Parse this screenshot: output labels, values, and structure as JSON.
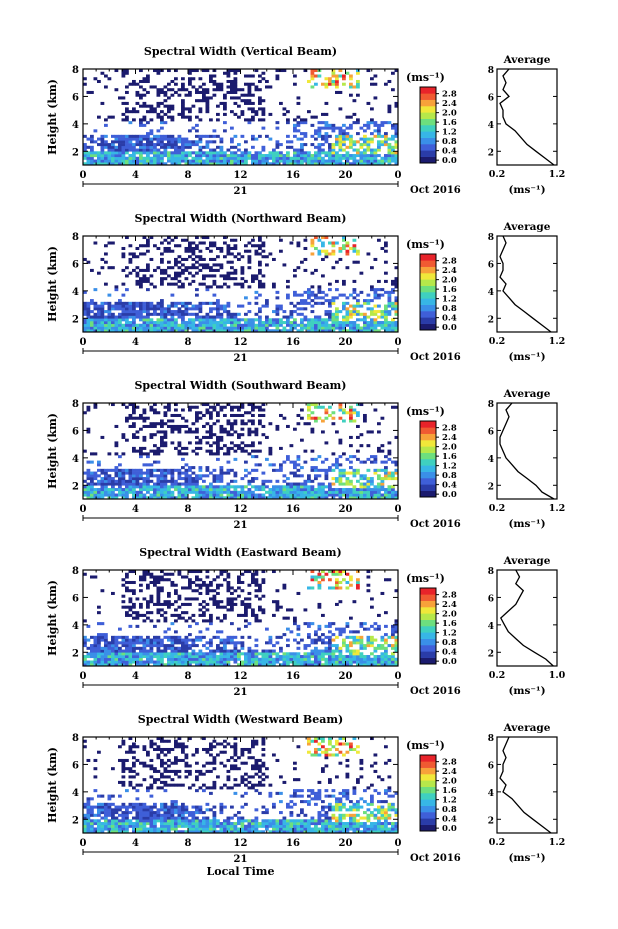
{
  "figure": {
    "x_axis_title": "Local Time",
    "date_label": "Oct 2016",
    "day_label": "21",
    "colorbar_unit": "(ms⁻¹)",
    "avg_title": "Average",
    "avg_unit": "(ms⁻¹)"
  },
  "colormap": [
    "#1b1b6e",
    "#2a3ca8",
    "#3f5fd8",
    "#3a8fe8",
    "#37b6e6",
    "#3fd0c0",
    "#6ddf7e",
    "#b6e84a",
    "#f0e83a",
    "#f7a23a",
    "#f05a32",
    "#e8232a"
  ],
  "chart_data": [
    {
      "type": "heatmap",
      "title": "Spectral Width (Vertical Beam)",
      "xlabel": "",
      "ylabel": "Height (km)",
      "xlim": [
        0,
        24
      ],
      "ylim": [
        1,
        8
      ],
      "x_ticks": [
        "0",
        "4",
        "8",
        "12",
        "16",
        "20",
        "0"
      ],
      "y_ticks": [
        "2",
        "4",
        "6",
        "8"
      ],
      "colorbar": {
        "label": "(ms⁻¹)",
        "ticks": [
          "0.0",
          "0.4",
          "0.8",
          "1.2",
          "1.6",
          "2.0",
          "2.4",
          "2.8"
        ],
        "range": [
          0,
          3
        ]
      },
      "average": {
        "xlim": [
          0.2,
          1.2
        ],
        "x_ticks": [
          "0.2",
          "1.2"
        ],
        "y": [
          1,
          1.5,
          2,
          2.5,
          3,
          3.5,
          4,
          4.5,
          5,
          5.5,
          6,
          6.5,
          7,
          7.5,
          8
        ],
        "x": [
          1.15,
          1.0,
          0.85,
          0.7,
          0.6,
          0.5,
          0.35,
          0.3,
          0.3,
          0.25,
          0.4,
          0.3,
          0.35,
          0.3,
          0.4
        ]
      }
    },
    {
      "type": "heatmap",
      "title": "Spectral Width (Northward Beam)",
      "xlabel": "",
      "ylabel": "Height (km)",
      "xlim": [
        0,
        24
      ],
      "ylim": [
        1,
        8
      ],
      "x_ticks": [
        "0",
        "4",
        "8",
        "12",
        "16",
        "20",
        "0"
      ],
      "y_ticks": [
        "2",
        "4",
        "6",
        "8"
      ],
      "colorbar": {
        "label": "(ms⁻¹)",
        "ticks": [
          "0.0",
          "0.4",
          "0.8",
          "1.2",
          "1.6",
          "2.0",
          "2.4",
          "2.8"
        ],
        "range": [
          0,
          3
        ]
      },
      "average": {
        "xlim": [
          0.2,
          1.2
        ],
        "x_ticks": [
          "0.2",
          "1.2"
        ],
        "y": [
          1,
          1.5,
          2,
          2.5,
          3,
          3.5,
          4,
          4.5,
          5,
          5.5,
          6,
          6.5,
          7,
          7.5,
          8
        ],
        "x": [
          1.1,
          0.95,
          0.8,
          0.65,
          0.5,
          0.4,
          0.3,
          0.35,
          0.25,
          0.3,
          0.3,
          0.25,
          0.3,
          0.35,
          0.3
        ]
      }
    },
    {
      "type": "heatmap",
      "title": "Spectral Width (Southward Beam)",
      "xlabel": "",
      "ylabel": "Height (km)",
      "xlim": [
        0,
        24
      ],
      "ylim": [
        1,
        8
      ],
      "x_ticks": [
        "0",
        "4",
        "8",
        "12",
        "16",
        "20",
        "0"
      ],
      "y_ticks": [
        "2",
        "4",
        "6",
        "8"
      ],
      "colorbar": {
        "label": "(ms⁻¹)",
        "ticks": [
          "0.0",
          "0.4",
          "0.8",
          "1.2",
          "1.6",
          "2.0",
          "2.4",
          "2.8"
        ],
        "range": [
          0,
          3
        ]
      },
      "average": {
        "xlim": [
          0.2,
          1.2
        ],
        "x_ticks": [
          "0.2",
          "1.2"
        ],
        "y": [
          1,
          1.5,
          2,
          2.5,
          3,
          3.5,
          4,
          4.5,
          5,
          5.5,
          6,
          6.5,
          7,
          7.5,
          8
        ],
        "x": [
          1.15,
          0.95,
          0.85,
          0.7,
          0.55,
          0.45,
          0.35,
          0.3,
          0.25,
          0.25,
          0.3,
          0.35,
          0.4,
          0.35,
          0.45
        ]
      }
    },
    {
      "type": "heatmap",
      "title": "Spectral Width (Eastward Beam)",
      "xlabel": "",
      "ylabel": "Height (km)",
      "xlim": [
        0,
        24
      ],
      "ylim": [
        1,
        8
      ],
      "x_ticks": [
        "0",
        "4",
        "8",
        "12",
        "16",
        "20",
        "0"
      ],
      "y_ticks": [
        "2",
        "4",
        "6",
        "8"
      ],
      "colorbar": {
        "label": "(ms⁻¹)",
        "ticks": [
          "0.0",
          "0.4",
          "0.8",
          "1.2",
          "1.6",
          "2.0",
          "2.4",
          "2.8"
        ],
        "range": [
          0,
          3
        ]
      },
      "average": {
        "xlim": [
          0.2,
          1.0
        ],
        "x_ticks": [
          "0.2",
          "1.0"
        ],
        "y": [
          1,
          1.5,
          2,
          2.5,
          3,
          3.5,
          4,
          4.5,
          5,
          5.5,
          6,
          6.5,
          7,
          7.5,
          8
        ],
        "x": [
          0.95,
          0.85,
          0.7,
          0.55,
          0.45,
          0.35,
          0.3,
          0.25,
          0.35,
          0.45,
          0.5,
          0.55,
          0.45,
          0.5,
          0.45
        ]
      }
    },
    {
      "type": "heatmap",
      "title": "Spectral Width (Westward Beam)",
      "xlabel": "Local Time",
      "ylabel": "Height (km)",
      "xlim": [
        0,
        24
      ],
      "ylim": [
        1,
        8
      ],
      "x_ticks": [
        "0",
        "4",
        "8",
        "12",
        "16",
        "20",
        "0"
      ],
      "y_ticks": [
        "2",
        "4",
        "6",
        "8"
      ],
      "colorbar": {
        "label": "(ms⁻¹)",
        "ticks": [
          "0.0",
          "0.4",
          "0.8",
          "1.2",
          "1.6",
          "2.0",
          "2.4",
          "2.8"
        ],
        "range": [
          0,
          3
        ]
      },
      "average": {
        "xlim": [
          0.2,
          1.2
        ],
        "x_ticks": [
          "0.2",
          "1.2"
        ],
        "y": [
          1,
          1.5,
          2,
          2.5,
          3,
          3.5,
          4,
          4.5,
          5,
          5.5,
          6,
          6.5,
          7,
          7.5,
          8
        ],
        "x": [
          1.1,
          0.95,
          0.8,
          0.65,
          0.55,
          0.45,
          0.3,
          0.35,
          0.25,
          0.3,
          0.3,
          0.35,
          0.3,
          0.35,
          0.4
        ]
      }
    }
  ]
}
